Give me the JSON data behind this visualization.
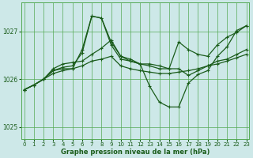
{
  "title": "Graphe pression niveau de la mer (hPa)",
  "background_color": "#cde8e8",
  "grid_color": "#55aa55",
  "line_color": "#1a5c1a",
  "ylim": [
    1024.75,
    1027.6
  ],
  "yticks": [
    1025,
    1026,
    1027
  ],
  "xlim": [
    -0.3,
    23.3
  ],
  "xticks": [
    0,
    1,
    2,
    3,
    4,
    5,
    6,
    7,
    8,
    9,
    10,
    11,
    12,
    13,
    14,
    15,
    16,
    17,
    18,
    19,
    20,
    21,
    22,
    23
  ],
  "series": [
    [
      1025.78,
      1025.88,
      1026.0,
      1026.18,
      1026.25,
      1026.28,
      1026.55,
      1027.32,
      1027.28,
      1026.72,
      1026.42,
      1026.38,
      1026.32,
      1025.85,
      1025.52,
      1025.42,
      1025.42,
      1025.92,
      1026.1,
      1026.18,
      1026.48,
      1026.68,
      1027.02,
      1027.12
    ],
    [
      1025.78,
      1025.88,
      1026.0,
      1026.22,
      1026.32,
      1026.35,
      1026.38,
      1026.52,
      1026.65,
      1026.82,
      1026.48,
      1026.38,
      1026.32,
      1026.28,
      1026.22,
      1026.22,
      1026.78,
      1026.62,
      1026.52,
      1026.48,
      1026.72,
      1026.88,
      1026.98,
      1027.12
    ],
    [
      1025.78,
      1025.88,
      1026.0,
      1026.12,
      1026.18,
      1026.22,
      1026.62,
      1027.32,
      1027.28,
      1026.78,
      1026.48,
      1026.42,
      1026.32,
      1026.32,
      1026.28,
      1026.22,
      1026.22,
      1026.08,
      1026.18,
      1026.28,
      1026.38,
      1026.42,
      1026.52,
      1026.62
    ],
    [
      1025.78,
      1025.88,
      1026.0,
      1026.18,
      1026.22,
      1026.22,
      1026.28,
      1026.38,
      1026.42,
      1026.48,
      1026.28,
      1026.22,
      1026.18,
      1026.15,
      1026.12,
      1026.12,
      1026.15,
      1026.18,
      1026.22,
      1026.28,
      1026.32,
      1026.38,
      1026.45,
      1026.52
    ]
  ],
  "marker": "+",
  "markersize": 3.5,
  "linewidth": 0.9
}
